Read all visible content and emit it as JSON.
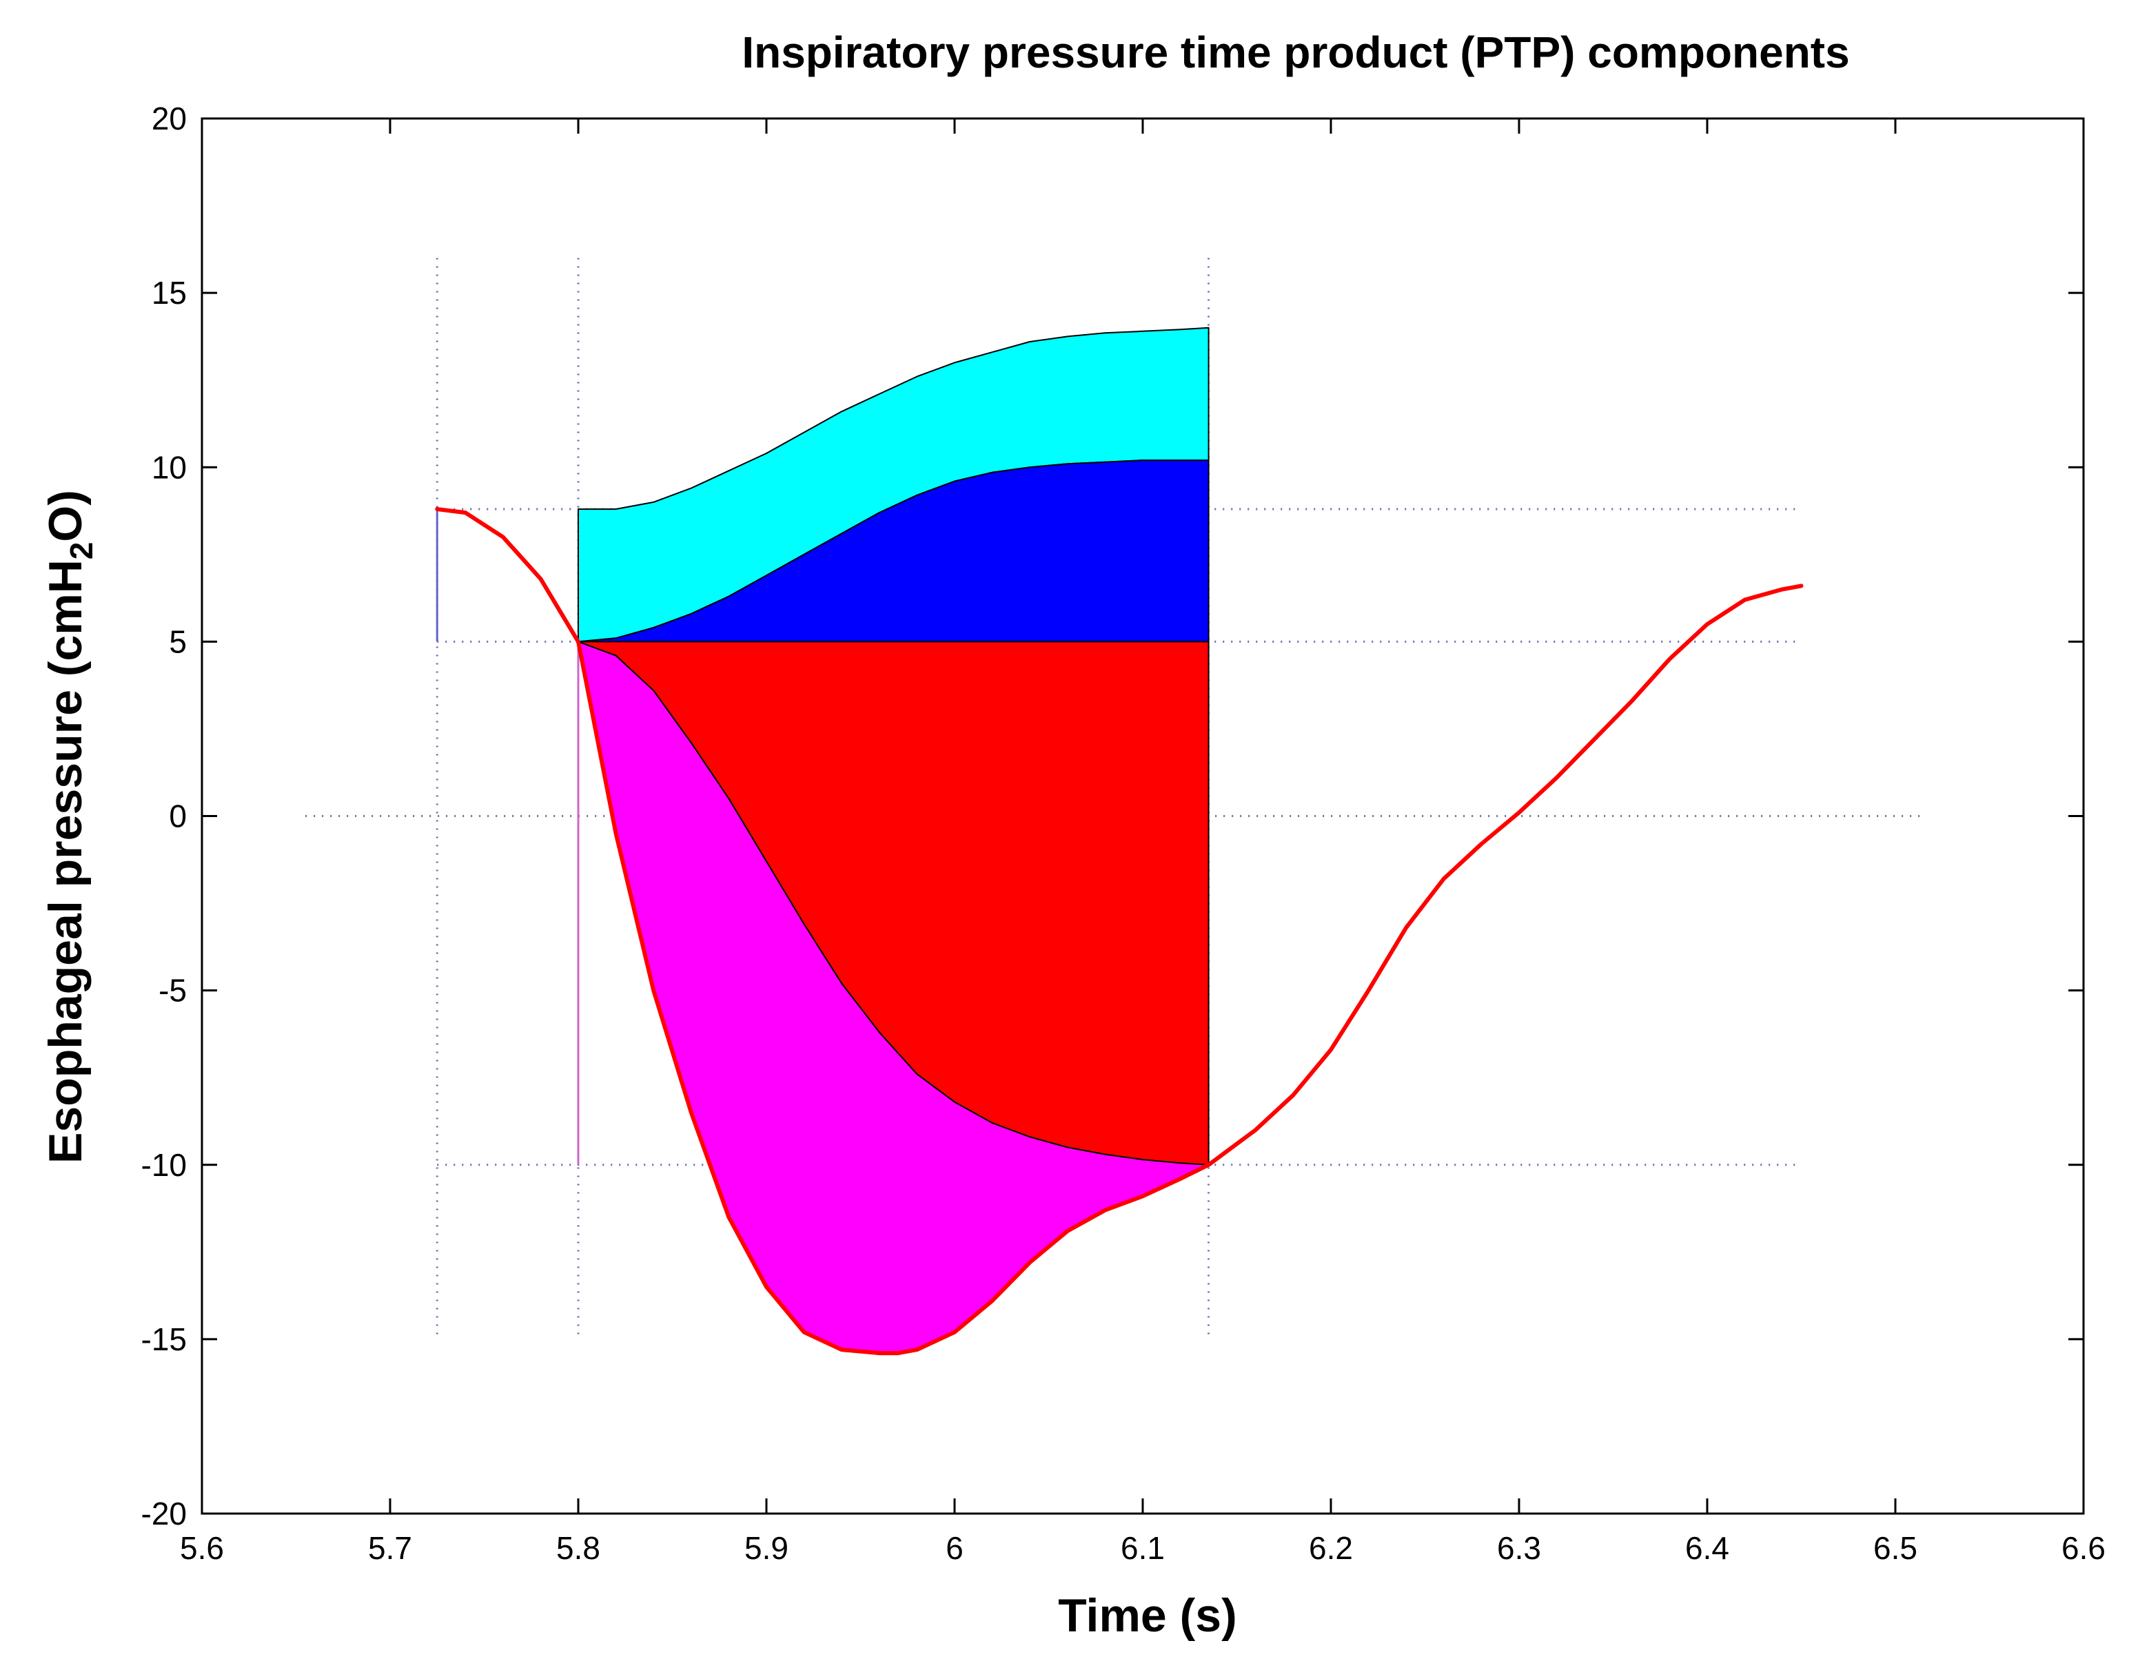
{
  "chart_data": {
    "type": "line",
    "title": "Inspiratory pressure time product (PTP) components",
    "xlabel": "Time (s)",
    "ylabel": {
      "prefix": "Esophageal pressure (cmH",
      "subscript": "2",
      "suffix": "O)"
    },
    "xlim": [
      5.6,
      6.6
    ],
    "ylim": [
      -20,
      20
    ],
    "xticks": [
      5.6,
      5.7,
      5.8,
      5.9,
      6,
      6.1,
      6.2,
      6.3,
      6.4,
      6.5,
      6.6
    ],
    "xtick_labels": [
      "5.6",
      "5.7",
      "5.8",
      "5.9",
      "6",
      "6.1",
      "6.2",
      "6.3",
      "6.4",
      "6.5",
      "6.6"
    ],
    "yticks": [
      -20,
      -15,
      -10,
      -5,
      0,
      5,
      10,
      15,
      20
    ],
    "ytick_labels": [
      "-20",
      "-15",
      "-10",
      "-5",
      "0",
      "5",
      "10",
      "15",
      "20"
    ],
    "grid": false,
    "series": [
      {
        "name": "Esophageal pressure",
        "color": "#ff0000",
        "x": [
          5.725,
          5.74,
          5.76,
          5.78,
          5.8,
          5.82,
          5.84,
          5.86,
          5.88,
          5.9,
          5.92,
          5.94,
          5.96,
          5.97,
          5.98,
          6.0,
          6.02,
          6.04,
          6.06,
          6.08,
          6.1,
          6.12,
          6.135,
          6.16,
          6.18,
          6.2,
          6.22,
          6.24,
          6.26,
          6.28,
          6.3,
          6.32,
          6.34,
          6.36,
          6.38,
          6.4,
          6.42,
          6.44,
          6.45
        ],
        "y": [
          8.8,
          8.7,
          8.0,
          6.8,
          5.0,
          -0.5,
          -5.0,
          -8.5,
          -11.5,
          -13.5,
          -14.8,
          -15.3,
          -15.4,
          -15.4,
          -15.3,
          -14.8,
          -13.9,
          -12.8,
          -11.9,
          -11.3,
          -10.9,
          -10.4,
          -10.0,
          -9.0,
          -8.0,
          -6.7,
          -5.0,
          -3.2,
          -1.8,
          -0.8,
          0.1,
          1.1,
          2.2,
          3.3,
          4.5,
          5.5,
          6.2,
          6.5,
          6.6
        ]
      }
    ],
    "areas": [
      {
        "name": "cyan-area",
        "color": "#00ffff",
        "x": [
          5.8,
          5.82,
          5.84,
          5.86,
          5.88,
          5.9,
          5.92,
          5.94,
          5.96,
          5.98,
          6.0,
          6.02,
          6.04,
          6.06,
          6.08,
          6.1,
          6.12,
          6.135
        ],
        "upper": [
          8.8,
          8.8,
          9.0,
          9.4,
          9.9,
          10.4,
          11.0,
          11.6,
          12.1,
          12.6,
          13.0,
          13.3,
          13.6,
          13.75,
          13.85,
          13.9,
          13.95,
          14.0
        ],
        "lower": [
          5.0,
          5.1,
          5.4,
          5.8,
          6.3,
          6.9,
          7.5,
          8.1,
          8.7,
          9.2,
          9.6,
          9.85,
          10.0,
          10.1,
          10.15,
          10.2,
          10.2,
          10.2
        ]
      },
      {
        "name": "blue-area",
        "color": "#0000ff",
        "x": [
          5.8,
          5.82,
          5.84,
          5.86,
          5.88,
          5.9,
          5.92,
          5.94,
          5.96,
          5.98,
          6.0,
          6.02,
          6.04,
          6.06,
          6.08,
          6.1,
          6.12,
          6.135
        ],
        "upper": [
          5.0,
          5.1,
          5.4,
          5.8,
          6.3,
          6.9,
          7.5,
          8.1,
          8.7,
          9.2,
          9.6,
          9.85,
          10.0,
          10.1,
          10.15,
          10.2,
          10.2,
          10.2
        ],
        "lower": [
          5.0,
          5.0,
          5.0,
          5.0,
          5.0,
          5.0,
          5.0,
          5.0,
          5.0,
          5.0,
          5.0,
          5.0,
          5.0,
          5.0,
          5.0,
          5.0,
          5.0,
          5.0
        ]
      },
      {
        "name": "red-area",
        "color": "#ff0000",
        "x": [
          5.8,
          5.82,
          5.84,
          5.86,
          5.88,
          5.9,
          5.92,
          5.94,
          5.96,
          5.98,
          6.0,
          6.02,
          6.04,
          6.06,
          6.08,
          6.1,
          6.12,
          6.135
        ],
        "upper": [
          5.0,
          5.0,
          5.0,
          5.0,
          5.0,
          5.0,
          5.0,
          5.0,
          5.0,
          5.0,
          5.0,
          5.0,
          5.0,
          5.0,
          5.0,
          5.0,
          5.0,
          5.0
        ],
        "lower": [
          5.0,
          4.6,
          3.6,
          2.1,
          0.5,
          -1.3,
          -3.1,
          -4.8,
          -6.2,
          -7.4,
          -8.2,
          -8.8,
          -9.2,
          -9.5,
          -9.7,
          -9.85,
          -9.95,
          -10.0
        ]
      },
      {
        "name": "magenta-area",
        "color": "#ff00ff",
        "x": [
          5.8,
          5.82,
          5.84,
          5.86,
          5.88,
          5.9,
          5.92,
          5.94,
          5.96,
          5.97,
          5.98,
          6.0,
          6.02,
          6.04,
          6.06,
          6.08,
          6.1,
          6.12,
          6.135
        ],
        "upper": [
          5.0,
          4.6,
          3.6,
          2.1,
          0.5,
          -1.3,
          -3.1,
          -4.8,
          -6.2,
          -6.8,
          -7.4,
          -8.2,
          -8.8,
          -9.2,
          -9.5,
          -9.7,
          -9.85,
          -9.95,
          -10.0
        ],
        "lower": [
          5.0,
          -0.5,
          -5.0,
          -8.5,
          -11.5,
          -13.5,
          -14.8,
          -15.3,
          -15.4,
          -15.4,
          -15.3,
          -14.8,
          -13.9,
          -12.8,
          -11.9,
          -11.3,
          -10.9,
          -10.4,
          -10.0
        ]
      }
    ],
    "reference_lines": {
      "vertical_dotted": [
        {
          "x": 5.725,
          "y_from": -15,
          "y_to": 16
        },
        {
          "x": 5.8,
          "y_from": -15,
          "y_to": 16
        },
        {
          "x": 6.135,
          "y_from": -15,
          "y_to": 16
        }
      ],
      "horizontal_dotted": [
        {
          "y": 8.8,
          "x_from": 5.725,
          "x_to": 6.45
        },
        {
          "y": 5.0,
          "x_from": 5.725,
          "x_to": 6.45
        },
        {
          "y": 0,
          "x_from": 5.655,
          "x_to": 6.515
        },
        {
          "y": -10.0,
          "x_from": 5.725,
          "x_to": 6.45
        }
      ],
      "vertical_solid": [
        {
          "x": 5.725,
          "y_from": 5.0,
          "y_to": 8.8,
          "color": "#6666cc"
        },
        {
          "x": 5.8,
          "y_from": -10.0,
          "y_to": 5.0,
          "color": "#cc66cc"
        }
      ]
    }
  }
}
